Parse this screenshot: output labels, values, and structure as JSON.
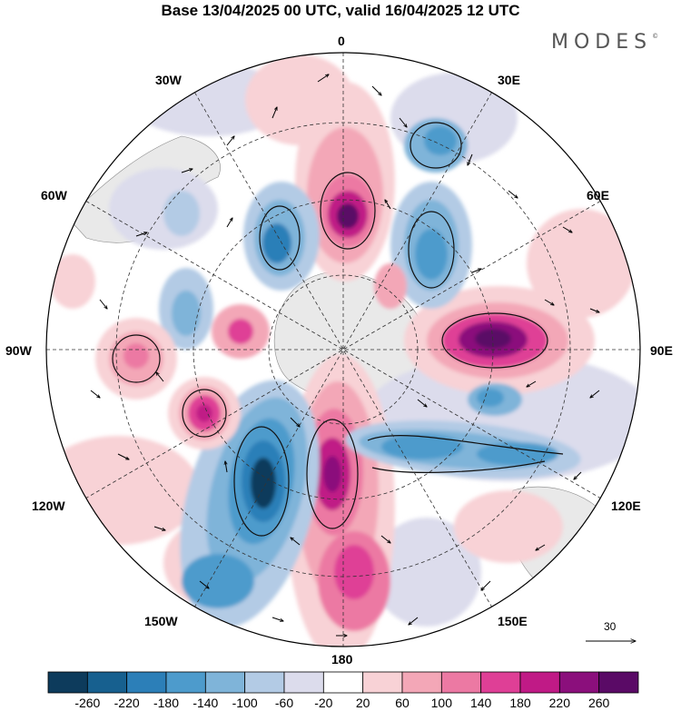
{
  "title": "Base 13/04/2025 00 UTC, valid 16/04/2025 12 UTC",
  "brand": "MODES",
  "brand_mark": "©",
  "longitude_labels": {
    "n0": "0",
    "e30": "30E",
    "e60": "60E",
    "e90": "90E",
    "e120": "120E",
    "e150": "150E",
    "s180": "180",
    "w150": "150W",
    "w120": "120W",
    "w90": "90W",
    "w60": "60W",
    "w30": "30W"
  },
  "vector_scale_label": "30",
  "colorbar": {
    "ticks": [
      "-260",
      "-220",
      "-180",
      "-140",
      "-100",
      "-60",
      "-20",
      "20",
      "60",
      "100",
      "140",
      "180",
      "220",
      "260"
    ],
    "colors": [
      "#0d3b5c",
      "#17608f",
      "#2c7fb8",
      "#4d9bcc",
      "#7fb4d9",
      "#b3cbe5",
      "#dcdcec",
      "#ffffff",
      "#f8d2d6",
      "#f3a7b7",
      "#ec79a3",
      "#df3f96",
      "#c01a86",
      "#8b0f7c",
      "#5a0a66"
    ]
  },
  "map_data": {
    "projection": "south-polar-stereographic",
    "field": "height anomaly with wind vectors",
    "features": [
      {
        "name": "positive anomaly near 0",
        "value": 260
      },
      {
        "name": "positive anomaly near 80E",
        "value": 260
      },
      {
        "name": "positive anomaly near 170W",
        "value": 220
      },
      {
        "name": "negative anomaly near 140W",
        "value": -240
      },
      {
        "name": "negative anomaly band 120E-150E",
        "value": -140
      }
    ]
  }
}
